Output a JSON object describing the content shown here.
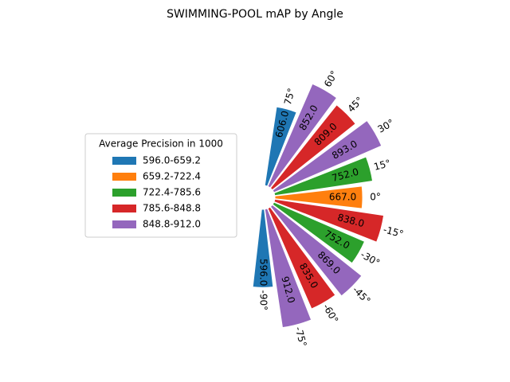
{
  "chart_data": {
    "type": "polar-bar",
    "title": "SWIMMING-POOL mAP by Angle",
    "categories": [
      "75°",
      "60°",
      "45°",
      "30°",
      "15°",
      "0°",
      "-15°",
      "-30°",
      "-45°",
      "-60°",
      "-75°",
      "-90°"
    ],
    "values": [
      606,
      852,
      809,
      893,
      752,
      667,
      838,
      752,
      869,
      835,
      912,
      596
    ],
    "value_labels": [
      "606.0",
      "852.0",
      "809.0",
      "893.0",
      "752.0",
      "667.0",
      "838.0",
      "752.0",
      "869.0",
      "835.0",
      "912.0",
      "596.0"
    ],
    "colors": [
      "#1f77b4",
      "#9467bd",
      "#d62728",
      "#9467bd",
      "#2ca02c",
      "#ff7f0e",
      "#d62728",
      "#2ca02c",
      "#9467bd",
      "#d62728",
      "#9467bd",
      "#1f77b4"
    ],
    "legend": {
      "title": "Average Precision in 1000",
      "position": "left",
      "entries": [
        {
          "label": "596.0-659.2",
          "color": "#1f77b4"
        },
        {
          "label": "659.2-722.4",
          "color": "#ff7f0e"
        },
        {
          "label": "722.4-785.6",
          "color": "#2ca02c"
        },
        {
          "label": "785.6-848.8",
          "color": "#d62728"
        },
        {
          "label": "848.8-912.0",
          "color": "#9467bd"
        }
      ]
    }
  }
}
